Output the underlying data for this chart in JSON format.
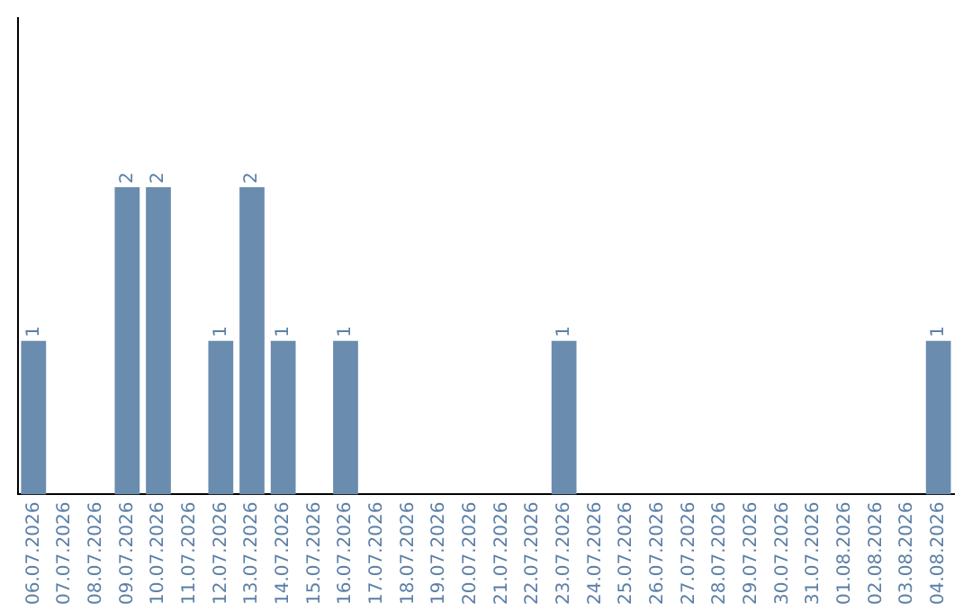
{
  "chart_data": {
    "type": "bar",
    "categories": [
      "06.07.2026",
      "07.07.2026",
      "08.07.2026",
      "09.07.2026",
      "10.07.2026",
      "11.07.2026",
      "12.07.2026",
      "13.07.2026",
      "14.07.2026",
      "15.07.2026",
      "16.07.2026",
      "17.07.2026",
      "18.07.2026",
      "19.07.2026",
      "20.07.2026",
      "21.07.2026",
      "22.07.2026",
      "23.07.2026",
      "24.07.2026",
      "25.07.2026",
      "26.07.2026",
      "27.07.2026",
      "28.07.2026",
      "29.07.2026",
      "30.07.2026",
      "31.07.2026",
      "01.08.2026",
      "02.08.2026",
      "03.08.2026",
      "04.08.2026"
    ],
    "values": [
      1,
      0,
      0,
      2,
      2,
      0,
      1,
      2,
      1,
      0,
      1,
      0,
      0,
      0,
      0,
      0,
      0,
      1,
      0,
      0,
      0,
      0,
      0,
      0,
      0,
      0,
      0,
      0,
      0,
      1
    ],
    "value_labels": [
      "1",
      null,
      null,
      "2",
      "2",
      null,
      "1",
      "2",
      "1",
      null,
      "1",
      null,
      null,
      null,
      null,
      null,
      null,
      "1",
      null,
      null,
      null,
      null,
      null,
      null,
      null,
      null,
      null,
      null,
      null,
      "1"
    ],
    "color": "#6a8caf",
    "ylim": [
      0,
      3.1
    ],
    "tick_labels": "x",
    "grid": false,
    "legend": false
  }
}
